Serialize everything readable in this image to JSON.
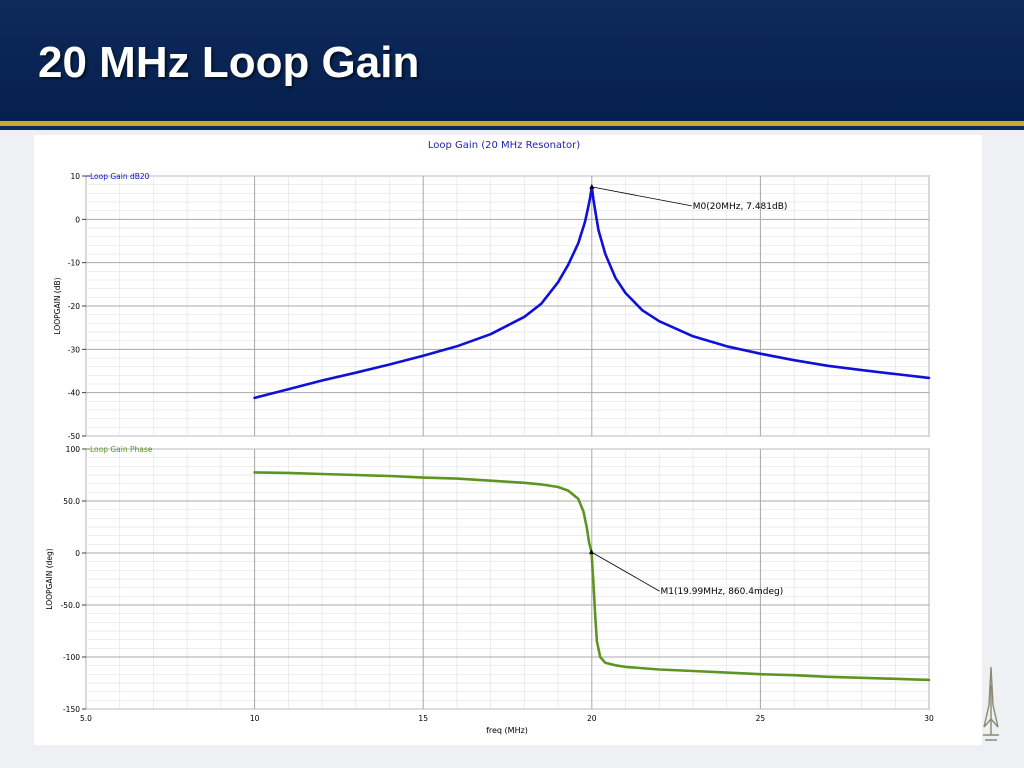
{
  "slide": {
    "title": "20 MHz Loop Gain"
  },
  "colors": {
    "header_bg": "#0e2a5c",
    "accent_rule": "#c9a633",
    "gain_trace": "#1010d8",
    "phase_trace": "#5e9422",
    "title_text": "#2323b0"
  },
  "chart_data": [
    {
      "type": "line",
      "title": "Loop Gain (20 MHz Resonator)",
      "legend": "Loop Gain dB20",
      "xlabel": "freq (MHz)",
      "ylabel": "LOOPGAIN (dB)",
      "xlim": [
        5,
        30
      ],
      "ylim": [
        -50,
        10
      ],
      "grid": true,
      "x_ticks": [
        "5.0",
        "10",
        "15",
        "20",
        "25",
        "30"
      ],
      "y_ticks": [
        "10",
        "0",
        "-10",
        "-20",
        "-30",
        "-40",
        "-50"
      ],
      "series": [
        {
          "name": "Loop Gain dB20",
          "x": [
            10,
            11,
            12,
            13,
            14,
            15,
            16,
            17,
            18,
            18.5,
            19,
            19.3,
            19.6,
            19.8,
            19.9,
            19.95,
            20,
            20.05,
            20.1,
            20.2,
            20.4,
            20.7,
            21,
            21.5,
            22,
            23,
            24,
            25,
            26,
            27,
            28,
            29,
            30
          ],
          "y": [
            -41.2,
            -39.2,
            -37.2,
            -35.4,
            -33.5,
            -31.5,
            -29.3,
            -26.5,
            -22.5,
            -19.5,
            -14.5,
            -10.5,
            -5.5,
            -0.5,
            3.0,
            5.0,
            7.481,
            4.5,
            2.0,
            -2.5,
            -8.0,
            -13.5,
            -17.0,
            -21.0,
            -23.5,
            -27.0,
            -29.3,
            -31.0,
            -32.5,
            -33.8,
            -34.8,
            -35.7,
            -36.6
          ]
        }
      ],
      "markers": [
        {
          "label": "M0(20MHz, 7.481dB)",
          "x": 20,
          "y": 7.481
        }
      ]
    },
    {
      "type": "line",
      "legend": "Loop Gain Phase",
      "xlabel": "freq (MHz)",
      "ylabel": "LOOPGAIN (deg)",
      "xlim": [
        5,
        30
      ],
      "ylim": [
        -150,
        100
      ],
      "grid": true,
      "x_ticks": [
        "5.0",
        "10",
        "15",
        "20",
        "25",
        "30"
      ],
      "y_ticks": [
        "100",
        "50.0",
        "0",
        "-50.0",
        "-100",
        "-150"
      ],
      "series": [
        {
          "name": "Loop Gain Phase",
          "x": [
            10,
            11,
            12,
            13,
            14,
            15,
            16,
            17,
            18,
            18.5,
            19,
            19.3,
            19.6,
            19.75,
            19.85,
            19.92,
            19.99,
            20.05,
            20.1,
            20.15,
            20.25,
            20.4,
            20.7,
            21,
            22,
            23,
            24,
            25,
            26,
            27,
            28,
            29,
            30
          ],
          "y": [
            77.5,
            77.0,
            76.0,
            75.0,
            74.0,
            72.5,
            71.5,
            69.5,
            67.5,
            66.0,
            63.5,
            60.0,
            52.0,
            40.0,
            25.0,
            10.0,
            0.86,
            -30.0,
            -60.0,
            -85.0,
            -100.0,
            -105.5,
            -108.0,
            -109.5,
            -112.0,
            -113.5,
            -115.0,
            -116.5,
            -117.5,
            -119.0,
            -120.0,
            -121.0,
            -122.0
          ]
        }
      ],
      "markers": [
        {
          "label": "M1(19.99MHz, 860.4mdeg)",
          "x": 19.99,
          "y": 0.8604
        }
      ]
    }
  ]
}
